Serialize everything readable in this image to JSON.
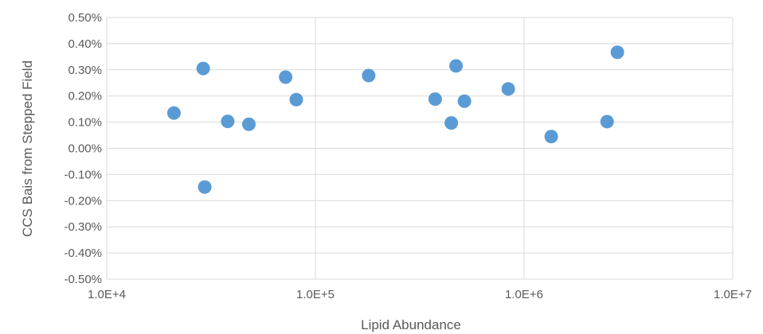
{
  "chart_data": {
    "type": "scatter",
    "xlabel": "Lipid Abundance",
    "ylabel": "CCS Bais from Stepped Field",
    "x_scale": "log",
    "xlim": [
      10000,
      10000000
    ],
    "ylim": [
      -0.5,
      0.5
    ],
    "x_ticks": [
      10000,
      100000,
      1000000,
      10000000
    ],
    "x_tick_labels": [
      "1.0E+4",
      "1.0E+5",
      "1.0E+6",
      "1.0E+7"
    ],
    "y_ticks": [
      0.5,
      0.4,
      0.3,
      0.2,
      0.1,
      0.0,
      -0.1,
      -0.2,
      -0.3,
      -0.4,
      -0.5
    ],
    "y_tick_labels": [
      "0.50%",
      "0.40%",
      "0.30%",
      "0.20%",
      "0.10%",
      "0.00%",
      "-0.10%",
      "-0.20%",
      "-0.30%",
      "-0.40%",
      "-0.50%"
    ],
    "grid": true,
    "marker_color": "#5B9BD5",
    "points": [
      {
        "x": 21000,
        "y": 0.135
      },
      {
        "x": 29000,
        "y": 0.305
      },
      {
        "x": 29500,
        "y": -0.148
      },
      {
        "x": 38000,
        "y": 0.103
      },
      {
        "x": 48000,
        "y": 0.092
      },
      {
        "x": 72000,
        "y": 0.272
      },
      {
        "x": 81000,
        "y": 0.186
      },
      {
        "x": 180000,
        "y": 0.278
      },
      {
        "x": 375000,
        "y": 0.188
      },
      {
        "x": 448000,
        "y": 0.097
      },
      {
        "x": 472000,
        "y": 0.315
      },
      {
        "x": 518000,
        "y": 0.18
      },
      {
        "x": 840000,
        "y": 0.227
      },
      {
        "x": 1350000,
        "y": 0.045
      },
      {
        "x": 2500000,
        "y": 0.102
      },
      {
        "x": 2800000,
        "y": 0.367
      }
    ]
  }
}
